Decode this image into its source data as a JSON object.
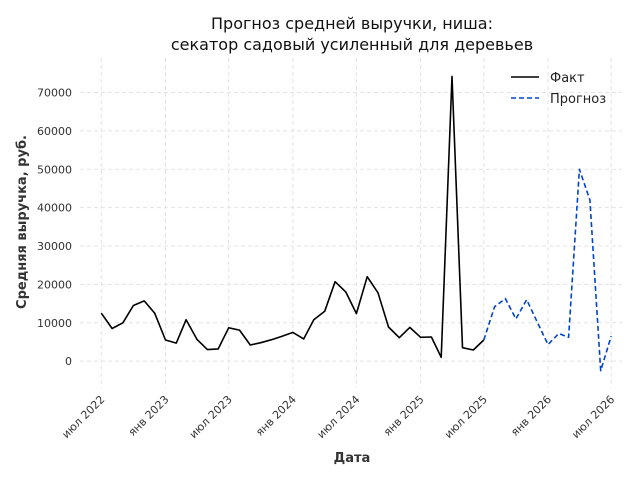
{
  "chart_data": {
    "type": "line",
    "title_line1": "Прогноз средней выручки, ниша:",
    "title_line2": "секатор садовый усиленный для деревьев",
    "xlabel": "Дата",
    "ylabel": "Средняя выручка, руб.",
    "xlim": [
      "2022-05-01",
      "2026-08-01"
    ],
    "ylim": [
      -7000,
      79000
    ],
    "y_ticks": [
      0,
      10000,
      20000,
      30000,
      40000,
      50000,
      60000,
      70000
    ],
    "x_ticks": [
      {
        "date": "2022-07-01",
        "label": "июл 2022"
      },
      {
        "date": "2023-01-01",
        "label": "янв 2023"
      },
      {
        "date": "2023-07-01",
        "label": "июл 2023"
      },
      {
        "date": "2024-01-01",
        "label": "янв 2024"
      },
      {
        "date": "2024-07-01",
        "label": "июл 2024"
      },
      {
        "date": "2025-01-01",
        "label": "янв 2025"
      },
      {
        "date": "2025-07-01",
        "label": "июл 2025"
      },
      {
        "date": "2026-01-01",
        "label": "янв 2026"
      },
      {
        "date": "2026-07-01",
        "label": "июл 2026"
      }
    ],
    "grid": true,
    "legend_position": "top-right",
    "series": [
      {
        "name": "Факт",
        "color": "#000000",
        "style": "solid",
        "points": [
          [
            "2022-07-01",
            12500
          ],
          [
            "2022-08-01",
            8500
          ],
          [
            "2022-09-01",
            10000
          ],
          [
            "2022-10-01",
            14500
          ],
          [
            "2022-11-01",
            15700
          ],
          [
            "2022-12-01",
            12500
          ],
          [
            "2023-01-01",
            5500
          ],
          [
            "2023-02-01",
            4700
          ],
          [
            "2023-03-01",
            10800
          ],
          [
            "2023-04-01",
            5700
          ],
          [
            "2023-05-01",
            3000
          ],
          [
            "2023-06-01",
            3200
          ],
          [
            "2023-07-01",
            8700
          ],
          [
            "2023-08-01",
            8100
          ],
          [
            "2023-09-01",
            4200
          ],
          [
            "2023-10-01",
            4800
          ],
          [
            "2023-11-01",
            5600
          ],
          [
            "2023-12-01",
            6500
          ],
          [
            "2024-01-01",
            7500
          ],
          [
            "2024-02-01",
            5800
          ],
          [
            "2024-03-01",
            10800
          ],
          [
            "2024-04-01",
            13000
          ],
          [
            "2024-05-01",
            20700
          ],
          [
            "2024-06-01",
            18000
          ],
          [
            "2024-07-01",
            12400
          ],
          [
            "2024-08-01",
            22000
          ],
          [
            "2024-09-01",
            17800
          ],
          [
            "2024-10-01",
            8900
          ],
          [
            "2024-11-01",
            6100
          ],
          [
            "2024-12-01",
            8800
          ],
          [
            "2025-01-01",
            6200
          ],
          [
            "2025-02-01",
            6300
          ],
          [
            "2025-03-01",
            1000
          ],
          [
            "2025-04-01",
            74200
          ],
          [
            "2025-05-01",
            3500
          ],
          [
            "2025-06-01",
            2900
          ],
          [
            "2025-07-01",
            5500
          ]
        ]
      },
      {
        "name": "Прогноз",
        "color": "#0044cc",
        "style": "dashed",
        "points": [
          [
            "2025-07-01",
            5500
          ],
          [
            "2025-08-01",
            14200
          ],
          [
            "2025-09-01",
            16300
          ],
          [
            "2025-10-01",
            11000
          ],
          [
            "2025-11-01",
            16000
          ],
          [
            "2025-12-01",
            10200
          ],
          [
            "2026-01-01",
            4300
          ],
          [
            "2026-02-01",
            7200
          ],
          [
            "2026-03-01",
            6200
          ],
          [
            "2026-04-01",
            50000
          ],
          [
            "2026-05-01",
            42000
          ],
          [
            "2026-06-01",
            -2500
          ],
          [
            "2026-07-01",
            6500
          ]
        ]
      }
    ]
  }
}
